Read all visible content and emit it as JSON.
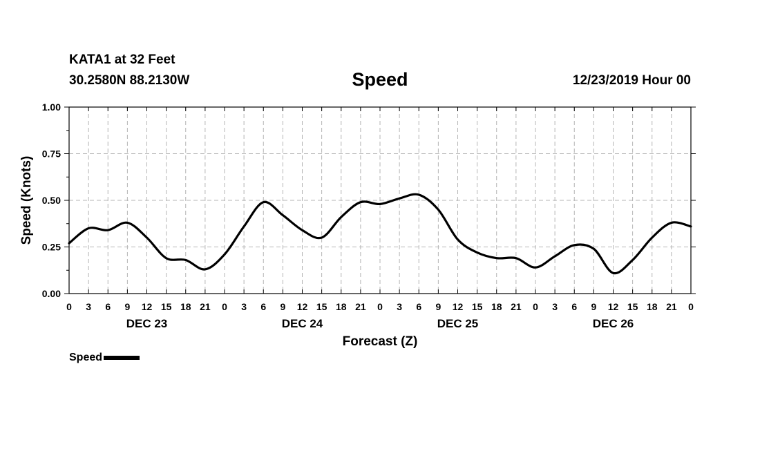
{
  "header": {
    "station": "KATA1 at 32 Feet",
    "coords": "30.2580N 88.2130W",
    "datetime": "12/23/2019 Hour 00"
  },
  "chart_data": {
    "type": "line",
    "title": "Speed",
    "xlabel": "Forecast (Z)",
    "ylabel": "Speed (Knots)",
    "xlim": [
      0,
      96
    ],
    "ylim": [
      0,
      1.0
    ],
    "yticks": [
      "0.00",
      "0.25",
      "0.50",
      "0.75",
      "1.00"
    ],
    "xtick_step_hours": 3,
    "xtick_labels": [
      "0",
      "3",
      "6",
      "9",
      "12",
      "15",
      "18",
      "21",
      "0",
      "3",
      "6",
      "9",
      "12",
      "15",
      "18",
      "21",
      "0",
      "3",
      "6",
      "9",
      "12",
      "15",
      "18",
      "21",
      "0",
      "3",
      "6",
      "9",
      "12",
      "15",
      "18",
      "21",
      "0"
    ],
    "day_labels": [
      {
        "label": "DEC 23",
        "hour": 12
      },
      {
        "label": "DEC 24",
        "hour": 36
      },
      {
        "label": "DEC 25",
        "hour": 60
      },
      {
        "label": "DEC 26",
        "hour": 84
      }
    ],
    "grid": true,
    "legend": "bottom-left",
    "series": [
      {
        "name": "Speed",
        "color": "#000000",
        "x": [
          0,
          3,
          6,
          9,
          12,
          15,
          18,
          21,
          24,
          27,
          30,
          33,
          36,
          39,
          42,
          45,
          48,
          51,
          54,
          57,
          60,
          63,
          66,
          69,
          72,
          75,
          78,
          81,
          84,
          87,
          90,
          93,
          96
        ],
        "y": [
          0.27,
          0.35,
          0.34,
          0.38,
          0.3,
          0.19,
          0.18,
          0.13,
          0.21,
          0.36,
          0.49,
          0.42,
          0.34,
          0.3,
          0.41,
          0.49,
          0.48,
          0.51,
          0.53,
          0.45,
          0.29,
          0.22,
          0.19,
          0.19,
          0.14,
          0.2,
          0.26,
          0.24,
          0.11,
          0.18,
          0.3,
          0.38,
          0.36
        ]
      }
    ]
  }
}
